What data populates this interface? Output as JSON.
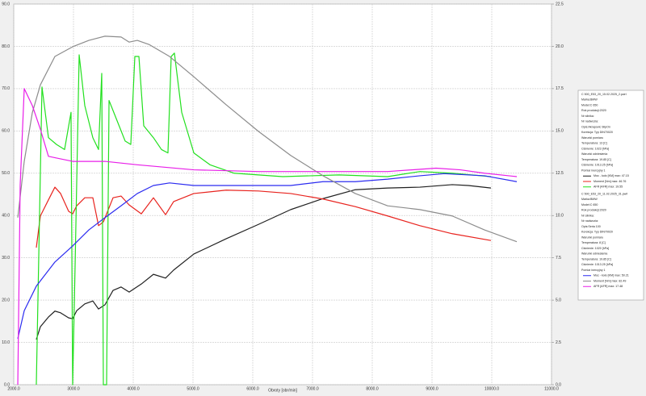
{
  "chart_data": {
    "type": "line",
    "xlabel": "Obroty [obr/min]",
    "xlim": [
      2000,
      11000
    ],
    "xticks": [
      {
        "value": 2000,
        "label": "2000.0"
      },
      {
        "value": 3000,
        "label": "3000.0"
      },
      {
        "value": 4000,
        "label": "4000.0"
      },
      {
        "value": 5000,
        "label": "5000.0"
      },
      {
        "value": 6000,
        "label": "6000.0"
      },
      {
        "value": 7000,
        "label": "7000.0"
      },
      {
        "value": 8000,
        "label": "8000.0"
      },
      {
        "value": 9000,
        "label": "9000.0"
      },
      {
        "value": 10000,
        "label": "10000.0"
      },
      {
        "value": 11000,
        "label": "11000.0"
      }
    ],
    "ylim": [
      0,
      90
    ],
    "yticks": [
      {
        "value": 0,
        "label": "0.0"
      },
      {
        "value": 10,
        "label": "10.0"
      },
      {
        "value": 20,
        "label": "20.0"
      },
      {
        "value": 30,
        "label": "30.0"
      },
      {
        "value": 40,
        "label": "40.0"
      },
      {
        "value": 50,
        "label": "50.0"
      },
      {
        "value": 60,
        "label": "60.0"
      },
      {
        "value": 70,
        "label": "70.0"
      },
      {
        "value": 80,
        "label": "80.0"
      },
      {
        "value": 90,
        "label": "90.0"
      }
    ],
    "y2lim": [
      0,
      22.5
    ],
    "y2ticks": [
      {
        "value": 0,
        "label": "0.0"
      },
      2.5,
      {
        "value": 5,
        "label": "5.0"
      },
      7.5,
      {
        "value": 10,
        "label": "10.0"
      },
      12.5,
      {
        "value": 15,
        "label": "15.0"
      },
      17.5,
      {
        "value": 20,
        "label": "20.0"
      },
      22.5
    ],
    "grid": true,
    "series": [
      {
        "name": "Moc - koło [KM] max: 47.15",
        "color": "#202020",
        "x": [
          2378,
          2446,
          2581,
          2689,
          2784,
          2919,
          2986,
          3054,
          3189,
          3324,
          3419,
          3527,
          3662,
          3797,
          3932,
          4135,
          4338,
          4541,
          4676,
          5014,
          5554,
          6095,
          6635,
          7176,
          7716,
          8257,
          8797,
          9338,
          9608,
          9986
        ],
        "values": [
          10.7,
          13.7,
          16.0,
          17.4,
          17.0,
          15.8,
          15.6,
          17.5,
          19.1,
          19.8,
          17.9,
          18.9,
          22.3,
          23.1,
          21.9,
          23.8,
          26.1,
          25.2,
          27.1,
          30.9,
          34.5,
          37.9,
          41.4,
          44.0,
          46.1,
          46.5,
          46.7,
          47.3,
          47.1,
          46.5
        ]
      },
      {
        "name": "Moment [Nm] max: 46.76",
        "color": "#e8231e",
        "x": [
          2378,
          2446,
          2581,
          2689,
          2784,
          2919,
          2986,
          3054,
          3189,
          3324,
          3419,
          3500,
          3662,
          3797,
          3932,
          4135,
          4338,
          4541,
          4676,
          5014,
          5554,
          6095,
          6635,
          7176,
          7716,
          8257,
          8797,
          9338,
          9986
        ],
        "values": [
          32.4,
          39.9,
          43.7,
          46.7,
          45.2,
          41.0,
          40.4,
          42.3,
          44.2,
          44.2,
          37.6,
          38.5,
          44.2,
          44.6,
          42.5,
          40.4,
          44.2,
          40.2,
          43.3,
          45.2,
          46.0,
          45.8,
          45.2,
          43.9,
          42.1,
          39.9,
          37.6,
          35.7,
          34.1
        ]
      },
      {
        "name": "AFR [AFR] max: 19.55",
        "color": "#22e01e",
        "axis": "y2",
        "x": [
          2378,
          2473,
          2581,
          2716,
          2851,
          2959,
          2986,
          3027,
          3095,
          3189,
          3324,
          3419,
          3473,
          3500,
          3554,
          3595,
          3730,
          3865,
          3959,
          4027,
          4095,
          4176,
          4338,
          4473,
          4581,
          4635,
          4689,
          4811,
          5014,
          5284,
          5689,
          6500,
          7446,
          8257,
          8797,
          9338,
          9986
        ],
        "values": [
          0,
          17.6,
          14.6,
          14.2,
          13.9,
          16.1,
          0,
          7.0,
          19.5,
          16.5,
          14.6,
          13.9,
          18.4,
          0,
          0,
          16.8,
          15.6,
          14.4,
          14.2,
          19.4,
          19.4,
          15.3,
          14.6,
          13.9,
          13.7,
          19.4,
          19.6,
          16.1,
          13.7,
          13.0,
          12.5,
          12.3,
          12.4,
          12.3,
          12.6,
          12.5,
          12.3
        ]
      },
      {
        "name": "Moc - koło [KM] max: 50.21",
        "color": "#2b2bf0",
        "x": [
          2068,
          2176,
          2378,
          2689,
          2986,
          3257,
          3527,
          3797,
          4068,
          4338,
          4608,
          5014,
          5554,
          6095,
          6635,
          7176,
          7716,
          8257,
          8797,
          9203,
          9878,
          10419
        ],
        "values": [
          10.9,
          17.5,
          23.3,
          29.0,
          32.8,
          36.6,
          39.5,
          42.3,
          45.2,
          47.1,
          47.7,
          47.1,
          47.1,
          47.1,
          47.1,
          48.0,
          48.0,
          48.6,
          49.4,
          49.9,
          49.4,
          48.0
        ]
      },
      {
        "name": "Moment [Nm] max: 82.49",
        "color": "#8c8c8c",
        "x": [
          2068,
          2176,
          2311,
          2446,
          2689,
          2986,
          3257,
          3527,
          3797,
          3932,
          4068,
          4270,
          4608,
          5014,
          5554,
          6095,
          6635,
          7176,
          7716,
          8257,
          8797,
          9338,
          9878,
          10419
        ],
        "values": [
          39.5,
          52.8,
          64.3,
          70.9,
          77.6,
          79.9,
          81.4,
          82.4,
          82.2,
          81.0,
          81.4,
          80.4,
          77.6,
          72.8,
          66.2,
          59.9,
          54.2,
          49.4,
          45.2,
          42.3,
          41.4,
          39.9,
          36.6,
          33.8
        ]
      },
      {
        "name": "AFR [AFR] max: 17.48",
        "color": "#e81ee8",
        "axis": "y2",
        "x": [
          2068,
          2108,
          2176,
          2311,
          2446,
          2581,
          2716,
          2986,
          3527,
          4068,
          5014,
          6095,
          7176,
          8257,
          9068,
          9473,
          9878,
          10419
        ],
        "values": [
          0,
          11.8,
          17.5,
          16.5,
          15.1,
          13.5,
          13.4,
          13.2,
          13.2,
          13.0,
          12.7,
          12.6,
          12.6,
          12.6,
          12.8,
          12.7,
          12.5,
          12.3
        ]
      }
    ]
  },
  "panel": {
    "blocks": [
      {
        "lines": [
          "C 500_E53_20_15.02.2025_2.pwrl",
          "Marka:BMW",
          "Model:C 650",
          "Rok produkcji:2020",
          "Nr silnika:",
          "Nr nadwozia:",
          "Opis:Akrapovic SlipOn",
          "Korekcja: Typ DIN70020",
          "Warunki pomiaru",
          "Temperatura: 13 [C]",
          "Ciśnienie: 1023 [hPa]",
          "Warunki odniesienia",
          "Temperatura: 19.85 [C]",
          "Ciśnienie: 1013.25 [hPa]",
          "Pomiar inercyjny 1"
        ]
      },
      {
        "lines": [
          "C 500_E53_20_11.02.2025_31.pwrl",
          "Marka:BMW",
          "Model:C 650",
          "Rok produkcji:2020",
          "Nr silnika:",
          "Nr nadwozia:",
          "Opis:Seria 100",
          "Korekcja: Typ DIN70020",
          "Warunki pomiaru",
          "Temperatura: 8 [C]",
          "Ciśnienie: 1020 [hPa]",
          "Warunki odniesienia",
          "Temperatura: 19.85 [C]",
          "Ciśnienie: 1013.25 [hPa]",
          "Pomiar inercyjny 1"
        ]
      }
    ]
  }
}
